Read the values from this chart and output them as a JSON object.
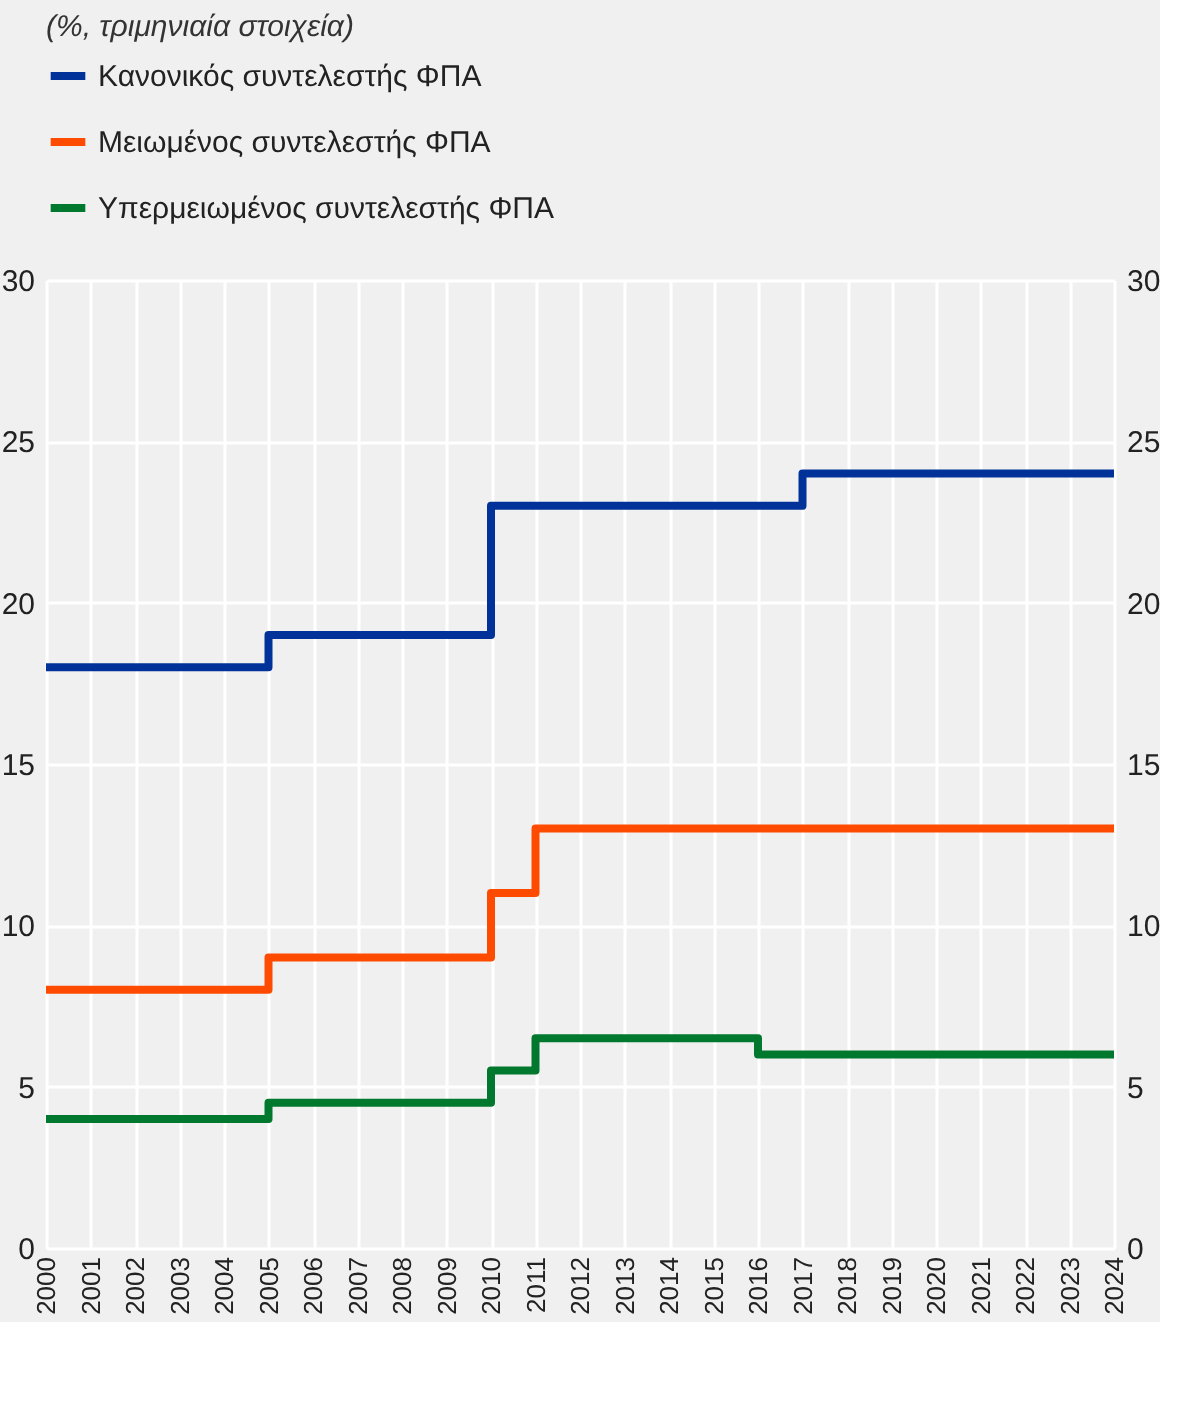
{
  "chart_data": {
    "type": "step",
    "title": "(%, τριμηνιαία στοιχεία)",
    "series": [
      {
        "name": "Κανονικός συντελεστής ΦΠΑ",
        "color": "#003299",
        "x": [
          2000,
          2005,
          2010,
          2017,
          2024
        ],
        "values": [
          18,
          19,
          23,
          24,
          24
        ]
      },
      {
        "name": "Μειωμένος συντελεστής  ΦΠΑ",
        "color": "#ff4b00",
        "x": [
          2000,
          2005,
          2010,
          2011,
          2024
        ],
        "values": [
          8,
          9,
          11,
          13,
          13
        ]
      },
      {
        "name": "Υπερμειωμένος συντελεστής ΦΠΑ",
        "color": "#00782e",
        "x": [
          2000,
          2005,
          2010,
          2011,
          2016,
          2024
        ],
        "values": [
          4,
          4.5,
          5.5,
          6.5,
          6,
          6
        ]
      }
    ],
    "xlim": [
      2000,
      2024
    ],
    "xticks": [
      2000,
      2001,
      2002,
      2003,
      2004,
      2005,
      2006,
      2007,
      2008,
      2009,
      2010,
      2011,
      2012,
      2013,
      2014,
      2015,
      2016,
      2017,
      2018,
      2019,
      2020,
      2021,
      2022,
      2023,
      2024
    ],
    "ylim": [
      0,
      30
    ],
    "yticks": [
      0,
      5,
      10,
      15,
      20,
      25,
      30
    ],
    "y2lim": [
      0,
      30
    ],
    "y2ticks": [
      0,
      5,
      10,
      15,
      20,
      25,
      30
    ],
    "grid": true,
    "legend": "top left",
    "line_style": "solid"
  }
}
